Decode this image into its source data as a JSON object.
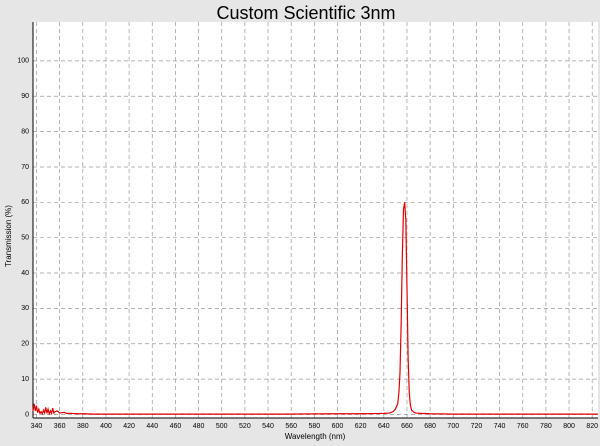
{
  "chart_data": {
    "type": "line",
    "title": "Custom Scientific 3nm",
    "x_label": "Wavelength (nm)",
    "y_label": "Transmission (%)",
    "x": [
      337,
      338,
      339,
      340,
      341,
      342,
      343,
      344,
      345,
      346,
      347,
      348,
      349,
      350,
      351,
      352,
      353,
      354,
      355,
      356,
      358,
      360,
      362,
      364,
      366,
      370,
      375,
      380,
      390,
      400,
      450,
      500,
      550,
      600,
      620,
      640,
      645,
      648,
      650,
      652,
      653,
      654,
      655,
      656,
      657,
      658,
      659,
      660,
      661,
      662,
      663,
      664,
      666,
      668,
      672,
      680,
      700,
      720,
      760,
      800,
      825
    ],
    "values": [
      1,
      3,
      1,
      2.5,
      0.5,
      1.5,
      0.3,
      0.8,
      0.2,
      1.2,
      0.4,
      2,
      0.3,
      1.5,
      0.2,
      1,
      0.3,
      1.8,
      0.4,
      0.8,
      1,
      0.4,
      0.5,
      0.6,
      0.3,
      0.3,
      0.2,
      0.2,
      0.1,
      0.1,
      0.1,
      0.1,
      0.1,
      0.2,
      0.2,
      0.3,
      0.4,
      0.8,
      1.5,
      3,
      6,
      12,
      26,
      45,
      58,
      60,
      55,
      36,
      16,
      6,
      2.5,
      1.2,
      0.6,
      0.4,
      0.3,
      0.2,
      0.1,
      0.1,
      0.1,
      0.1,
      0.1
    ],
    "color": "#e00000",
    "xlim": [
      337,
      825
    ],
    "ylim": [
      -1,
      111
    ],
    "xticks": [
      340,
      360,
      380,
      400,
      420,
      440,
      460,
      480,
      500,
      520,
      540,
      560,
      580,
      600,
      620,
      640,
      660,
      680,
      700,
      720,
      740,
      760,
      780,
      800,
      820
    ],
    "yticks": [
      0,
      10,
      20,
      30,
      40,
      50,
      60,
      70,
      80,
      90,
      100
    ],
    "grid": true
  }
}
